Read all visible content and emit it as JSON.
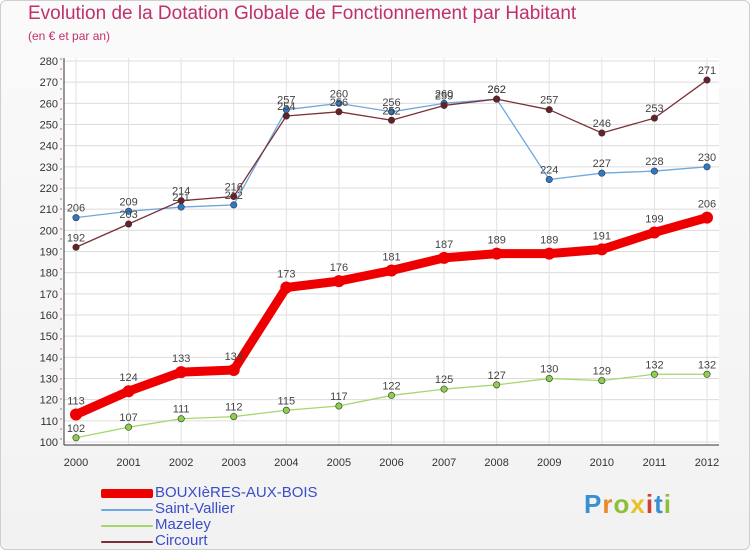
{
  "header": {
    "title": "Evolution de la Dotation Globale de Fonctionnement par Habitant",
    "subtitle": "(en € et par an)"
  },
  "logo": {
    "text": "Proxiti",
    "colors": [
      "#3a8fd0",
      "#e8882a",
      "#8cbf3a",
      "#e8c22a",
      "#d04030",
      "#3a8fd0",
      "#8cbf3a"
    ]
  },
  "chart_data": {
    "type": "line",
    "title": "Evolution de la Dotation Globale de Fonctionnement par Habitant",
    "subtitle": "(en € et par an)",
    "xlabel": "",
    "ylabel": "",
    "x": [
      "2000",
      "2001",
      "2002",
      "2003",
      "2004",
      "2005",
      "2006",
      "2007",
      "2008",
      "2009",
      "2010",
      "2011",
      "2012"
    ],
    "ylim": [
      100,
      280
    ],
    "yticks": [
      100,
      110,
      120,
      130,
      140,
      150,
      160,
      170,
      180,
      190,
      200,
      210,
      220,
      230,
      240,
      250,
      260,
      270,
      280
    ],
    "grid": true,
    "legend_position": "bottom-left",
    "series": [
      {
        "name": "BOUXIèRES-AUX-BOIS",
        "color": "#ee0000",
        "marker": "#ee0000",
        "label_color": "#444444",
        "emphasis": true,
        "values": [
          113,
          124,
          133,
          134,
          173,
          176,
          181,
          187,
          189,
          189,
          191,
          199,
          206
        ]
      },
      {
        "name": "Saint-Vallier",
        "color": "#6fa8dc",
        "marker": "#2f78c8",
        "label_color": "#444444",
        "emphasis": false,
        "values": [
          206,
          209,
          211,
          212,
          257,
          260,
          256,
          260,
          262,
          224,
          227,
          228,
          230
        ]
      },
      {
        "name": "Mazeley",
        "color": "#a4d86e",
        "marker": "#8ccf4a",
        "label_color": "#444444",
        "emphasis": false,
        "values": [
          102,
          107,
          111,
          112,
          115,
          117,
          122,
          125,
          127,
          130,
          129,
          132,
          132
        ]
      },
      {
        "name": "Circourt",
        "color": "#7a3038",
        "marker": "#6a2028",
        "label_color": "#444444",
        "emphasis": false,
        "values": [
          192,
          203,
          214,
          216,
          254,
          256,
          252,
          259,
          262,
          257,
          246,
          253,
          271
        ]
      }
    ]
  }
}
